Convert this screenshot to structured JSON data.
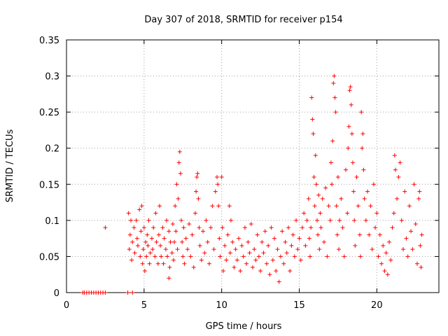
{
  "chart_data": {
    "type": "scatter",
    "title": "Day 307 of 2018, SRMTID for receiver p154",
    "xlabel": "GPS time / hours",
    "ylabel": "SRMTID / TECUs",
    "xlim": [
      0,
      24
    ],
    "ylim": [
      0,
      0.35
    ],
    "xticks": [
      0,
      5,
      10,
      15,
      20
    ],
    "xtick_labels": [
      "0",
      "5",
      "10",
      "15",
      "20"
    ],
    "yticks": [
      0,
      0.05,
      0.1,
      0.15,
      0.2,
      0.25,
      0.3,
      0.35
    ],
    "ytick_labels": [
      "0",
      "0.05",
      "0.1",
      "0.15",
      "0.2",
      "0.25",
      "0.3",
      "0.35"
    ],
    "grid": true,
    "marker": "plus",
    "series": [
      {
        "name": "SRMTID",
        "color": "#ff0000",
        "points": [
          [
            1.05,
            0
          ],
          [
            1.15,
            0
          ],
          [
            1.3,
            0
          ],
          [
            1.45,
            0
          ],
          [
            1.6,
            0
          ],
          [
            1.75,
            0
          ],
          [
            1.9,
            0
          ],
          [
            2.05,
            0
          ],
          [
            2.2,
            0
          ],
          [
            2.35,
            0
          ],
          [
            2.5,
            0
          ],
          [
            2.5,
            0.09
          ],
          [
            3.95,
            0
          ],
          [
            4.25,
            0
          ],
          [
            4.0,
            0.11
          ],
          [
            4.05,
            0.06
          ],
          [
            4.1,
            0.08
          ],
          [
            4.15,
            0.1
          ],
          [
            4.2,
            0.045
          ],
          [
            4.25,
            0.07
          ],
          [
            4.35,
            0.09
          ],
          [
            4.4,
            0.055
          ],
          [
            4.5,
            0.1
          ],
          [
            4.55,
            0.075
          ],
          [
            4.6,
            0.065
          ],
          [
            4.7,
            0.115
          ],
          [
            4.75,
            0.05
          ],
          [
            4.8,
            0.085
          ],
          [
            4.85,
            0.12
          ],
          [
            4.9,
            0.04
          ],
          [
            4.95,
            0.06
          ],
          [
            5.0,
            0.09
          ],
          [
            5.05,
            0.03
          ],
          [
            5.1,
            0.07
          ],
          [
            5.15,
            0.05
          ],
          [
            5.2,
            0.08
          ],
          [
            5.25,
            0.065
          ],
          [
            5.3,
            0.1
          ],
          [
            5.35,
            0.04
          ],
          [
            5.4,
            0.055
          ],
          [
            5.5,
            0.075
          ],
          [
            5.55,
            0.06
          ],
          [
            5.6,
            0.09
          ],
          [
            5.7,
            0.05
          ],
          [
            5.75,
            0.11
          ],
          [
            5.8,
            0.07
          ],
          [
            5.9,
            0.04
          ],
          [
            5.95,
            0.08
          ],
          [
            6.0,
            0.12
          ],
          [
            6.05,
            0.065
          ],
          [
            6.1,
            0.05
          ],
          [
            6.2,
            0.09
          ],
          [
            6.25,
            0.04
          ],
          [
            6.3,
            0.075
          ],
          [
            6.4,
            0.06
          ],
          [
            6.45,
            0.1
          ],
          [
            6.5,
            0.05
          ],
          [
            6.6,
            0.085
          ],
          [
            6.65,
            0.035
          ],
          [
            6.7,
            0.07
          ],
          [
            6.8,
            0.055
          ],
          [
            6.85,
            0.095
          ],
          [
            6.9,
            0.045
          ],
          [
            6.95,
            0.07
          ],
          [
            7.0,
            0.12
          ],
          [
            7.05,
            0.085
          ],
          [
            7.1,
            0.15
          ],
          [
            7.15,
            0.06
          ],
          [
            7.2,
            0.13
          ],
          [
            7.25,
            0.18
          ],
          [
            7.3,
            0.195
          ],
          [
            7.35,
            0.165
          ],
          [
            7.4,
            0.1
          ],
          [
            7.45,
            0.07
          ],
          [
            7.5,
            0.05
          ],
          [
            7.55,
            0.09
          ],
          [
            6.6,
            0.02
          ],
          [
            7.6,
            0.04
          ],
          [
            7.7,
            0.075
          ],
          [
            7.8,
            0.06
          ],
          [
            7.9,
            0.095
          ],
          [
            8.0,
            0.05
          ],
          [
            8.1,
            0.08
          ],
          [
            8.2,
            0.035
          ],
          [
            8.3,
            0.11
          ],
          [
            8.35,
            0.14
          ],
          [
            8.4,
            0.16
          ],
          [
            8.45,
            0.165
          ],
          [
            8.5,
            0.13
          ],
          [
            8.55,
            0.09
          ],
          [
            8.6,
            0.065
          ],
          [
            8.7,
            0.045
          ],
          [
            8.8,
            0.085
          ],
          [
            8.9,
            0.055
          ],
          [
            9.0,
            0.1
          ],
          [
            9.1,
            0.07
          ],
          [
            9.2,
            0.04
          ],
          [
            9.3,
            0.09
          ],
          [
            9.4,
            0.12
          ],
          [
            9.5,
            0.06
          ],
          [
            9.6,
            0.14
          ],
          [
            9.7,
            0.16
          ],
          [
            9.75,
            0.15
          ],
          [
            9.8,
            0.12
          ],
          [
            9.85,
            0.075
          ],
          [
            9.9,
            0.05
          ],
          [
            10.0,
            0.16
          ],
          [
            10.05,
            0.09
          ],
          [
            10.1,
            0.03
          ],
          [
            10.2,
            0.065
          ],
          [
            10.3,
            0.045
          ],
          [
            10.4,
            0.08
          ],
          [
            10.5,
            0.12
          ],
          [
            10.55,
            0.055
          ],
          [
            10.6,
            0.1
          ],
          [
            10.7,
            0.07
          ],
          [
            10.8,
            0.035
          ],
          [
            10.9,
            0.06
          ],
          [
            11.0,
            0.045
          ],
          [
            11.1,
            0.075
          ],
          [
            11.2,
            0.03
          ],
          [
            11.3,
            0.065
          ],
          [
            11.4,
            0.05
          ],
          [
            11.5,
            0.09
          ],
          [
            11.6,
            0.04
          ],
          [
            11.7,
            0.07
          ],
          [
            11.8,
            0.055
          ],
          [
            11.9,
            0.095
          ],
          [
            12.0,
            0.035
          ],
          [
            12.1,
            0.06
          ],
          [
            12.2,
            0.045
          ],
          [
            12.3,
            0.08
          ],
          [
            12.4,
            0.05
          ],
          [
            12.5,
            0.03
          ],
          [
            12.6,
            0.07
          ],
          [
            12.7,
            0.055
          ],
          [
            12.8,
            0.085
          ],
          [
            12.9,
            0.04
          ],
          [
            13.0,
            0.065
          ],
          [
            13.1,
            0.025
          ],
          [
            13.2,
            0.09
          ],
          [
            13.3,
            0.045
          ],
          [
            13.4,
            0.075
          ],
          [
            13.5,
            0.03
          ],
          [
            13.6,
            0.06
          ],
          [
            13.7,
            0.015
          ],
          [
            13.8,
            0.05
          ],
          [
            13.9,
            0.085
          ],
          [
            14.0,
            0.04
          ],
          [
            14.1,
            0.07
          ],
          [
            14.2,
            0.055
          ],
          [
            14.3,
            0.09
          ],
          [
            14.4,
            0.03
          ],
          [
            14.5,
            0.065
          ],
          [
            14.6,
            0.08
          ],
          [
            14.7,
            0.05
          ],
          [
            14.8,
            0.1
          ],
          [
            14.9,
            0.06
          ],
          [
            15.0,
            0.075
          ],
          [
            15.1,
            0.045
          ],
          [
            15.2,
            0.09
          ],
          [
            15.3,
            0.11
          ],
          [
            15.4,
            0.065
          ],
          [
            15.5,
            0.1
          ],
          [
            15.6,
            0.13
          ],
          [
            15.65,
            0.075
          ],
          [
            15.7,
            0.05
          ],
          [
            15.75,
            0.09
          ],
          [
            15.8,
            0.27
          ],
          [
            15.85,
            0.24
          ],
          [
            15.9,
            0.22
          ],
          [
            15.95,
            0.16
          ],
          [
            16.0,
            0.12
          ],
          [
            16.05,
            0.19
          ],
          [
            16.1,
            0.15
          ],
          [
            16.15,
            0.1
          ],
          [
            16.2,
            0.08
          ],
          [
            16.25,
            0.135
          ],
          [
            16.3,
            0.06
          ],
          [
            16.35,
            0.11
          ],
          [
            16.4,
            0.09
          ],
          [
            16.5,
            0.13
          ],
          [
            16.6,
            0.07
          ],
          [
            16.7,
            0.145
          ],
          [
            16.8,
            0.05
          ],
          [
            16.9,
            0.12
          ],
          [
            17.0,
            0.1
          ],
          [
            17.05,
            0.18
          ],
          [
            17.1,
            0.15
          ],
          [
            17.15,
            0.21
          ],
          [
            17.2,
            0.29
          ],
          [
            17.25,
            0.3
          ],
          [
            17.3,
            0.27
          ],
          [
            17.35,
            0.25
          ],
          [
            17.4,
            0.12
          ],
          [
            17.45,
            0.08
          ],
          [
            17.5,
            0.16
          ],
          [
            17.55,
            0.06
          ],
          [
            17.6,
            0.1
          ],
          [
            17.7,
            0.13
          ],
          [
            17.8,
            0.09
          ],
          [
            17.9,
            0.05
          ],
          [
            18.0,
            0.17
          ],
          [
            18.1,
            0.11
          ],
          [
            18.15,
            0.2
          ],
          [
            18.2,
            0.23
          ],
          [
            18.25,
            0.28
          ],
          [
            18.3,
            0.285
          ],
          [
            18.35,
            0.26
          ],
          [
            18.4,
            0.22
          ],
          [
            18.45,
            0.18
          ],
          [
            18.5,
            0.14
          ],
          [
            18.55,
            0.1
          ],
          [
            18.6,
            0.065
          ],
          [
            18.7,
            0.16
          ],
          [
            18.8,
            0.12
          ],
          [
            18.9,
            0.08
          ],
          [
            18.95,
            0.05
          ],
          [
            19.0,
            0.25
          ],
          [
            19.05,
            0.2
          ],
          [
            19.1,
            0.22
          ],
          [
            19.15,
            0.17
          ],
          [
            19.2,
            0.13
          ],
          [
            19.3,
            0.1
          ],
          [
            19.4,
            0.14
          ],
          [
            19.5,
            0.08
          ],
          [
            19.6,
            0.12
          ],
          [
            19.7,
            0.06
          ],
          [
            19.8,
            0.15
          ],
          [
            19.9,
            0.09
          ],
          [
            20.0,
            0.11
          ],
          [
            20.1,
            0.05
          ],
          [
            20.2,
            0.08
          ],
          [
            20.3,
            0.04
          ],
          [
            20.4,
            0.065
          ],
          [
            20.5,
            0.03
          ],
          [
            20.6,
            0.055
          ],
          [
            20.7,
            0.025
          ],
          [
            20.8,
            0.07
          ],
          [
            20.9,
            0.045
          ],
          [
            21.0,
            0.09
          ],
          [
            21.1,
            0.11
          ],
          [
            21.15,
            0.19
          ],
          [
            21.2,
            0.17
          ],
          [
            21.3,
            0.13
          ],
          [
            21.4,
            0.16
          ],
          [
            21.5,
            0.18
          ],
          [
            21.6,
            0.1
          ],
          [
            21.7,
            0.06
          ],
          [
            21.8,
            0.14
          ],
          [
            21.9,
            0.075
          ],
          [
            22.0,
            0.05
          ],
          [
            22.1,
            0.12
          ],
          [
            22.2,
            0.085
          ],
          [
            22.3,
            0.06
          ],
          [
            22.4,
            0.15
          ],
          [
            22.5,
            0.095
          ],
          [
            22.6,
            0.04
          ],
          [
            22.7,
            0.13
          ],
          [
            22.75,
            0.14
          ],
          [
            22.8,
            0.065
          ],
          [
            22.85,
            0.035
          ],
          [
            22.9,
            0.08
          ]
        ]
      }
    ]
  }
}
